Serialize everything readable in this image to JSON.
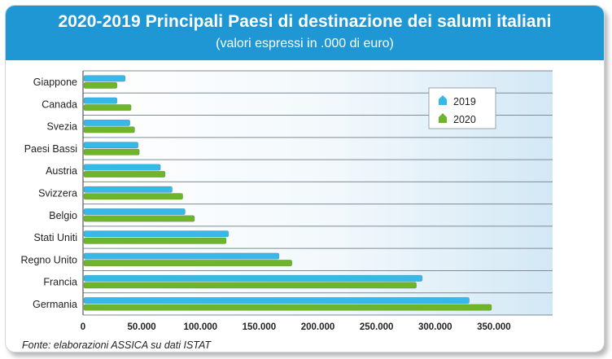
{
  "chart_data": {
    "type": "bar",
    "orientation": "horizontal",
    "title": "2020-2019 Principali Paesi di destinazione dei salumi italiani",
    "subtitle": "(valori espressi in .000 di euro)",
    "categories": [
      "Giappone",
      "Canada",
      "Svezia",
      "Paesi Bassi",
      "Austria",
      "Svizzera",
      "Belgio",
      "Stati Uniti",
      "Regno Unito",
      "Francia",
      "Germania"
    ],
    "series": [
      {
        "name": "2019",
        "color": "#36b9e9",
        "values": [
          36000,
          29000,
          40000,
          47000,
          66000,
          76000,
          87000,
          124000,
          167000,
          289000,
          329000
        ]
      },
      {
        "name": "2020",
        "color": "#6fb52c",
        "values": [
          29000,
          41000,
          44000,
          48000,
          70000,
          85000,
          95000,
          122000,
          178000,
          284000,
          348000
        ]
      }
    ],
    "xticks": [
      "0",
      "50.000",
      "100.000",
      "150.000",
      "200.000",
      "250.000",
      "300.000",
      "350.000"
    ],
    "xlim": [
      0,
      400000
    ],
    "grid": true,
    "legend": "top-right",
    "source": "Fonte: elaborazioni ASSICA su dati ISTAT"
  }
}
